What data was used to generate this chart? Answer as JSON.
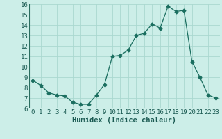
{
  "x": [
    0,
    1,
    2,
    3,
    4,
    5,
    6,
    7,
    8,
    9,
    10,
    11,
    12,
    13,
    14,
    15,
    16,
    17,
    18,
    19,
    20,
    21,
    22,
    23
  ],
  "y": [
    8.7,
    8.2,
    7.5,
    7.3,
    7.2,
    6.6,
    6.4,
    6.4,
    7.3,
    8.3,
    11.0,
    11.1,
    11.6,
    13.0,
    13.2,
    14.1,
    13.7,
    15.8,
    15.3,
    15.4,
    10.5,
    9.0,
    7.3,
    7.0
  ],
  "line_color": "#1a6e5f",
  "marker": "D",
  "marker_size": 2.5,
  "bg_color": "#cceee8",
  "grid_color": "#aad8d0",
  "xlabel": "Humidex (Indice chaleur)",
  "ylim": [
    6,
    16
  ],
  "xlim": [
    -0.5,
    23.5
  ],
  "yticks": [
    6,
    7,
    8,
    9,
    10,
    11,
    12,
    13,
    14,
    15,
    16
  ],
  "xticks": [
    0,
    1,
    2,
    3,
    4,
    5,
    6,
    7,
    8,
    9,
    10,
    11,
    12,
    13,
    14,
    15,
    16,
    17,
    18,
    19,
    20,
    21,
    22,
    23
  ],
  "tick_label_fontsize": 6.5,
  "xlabel_fontsize": 7.5,
  "label_color": "#1a5a52",
  "axis_line_color": "#2a6e60"
}
